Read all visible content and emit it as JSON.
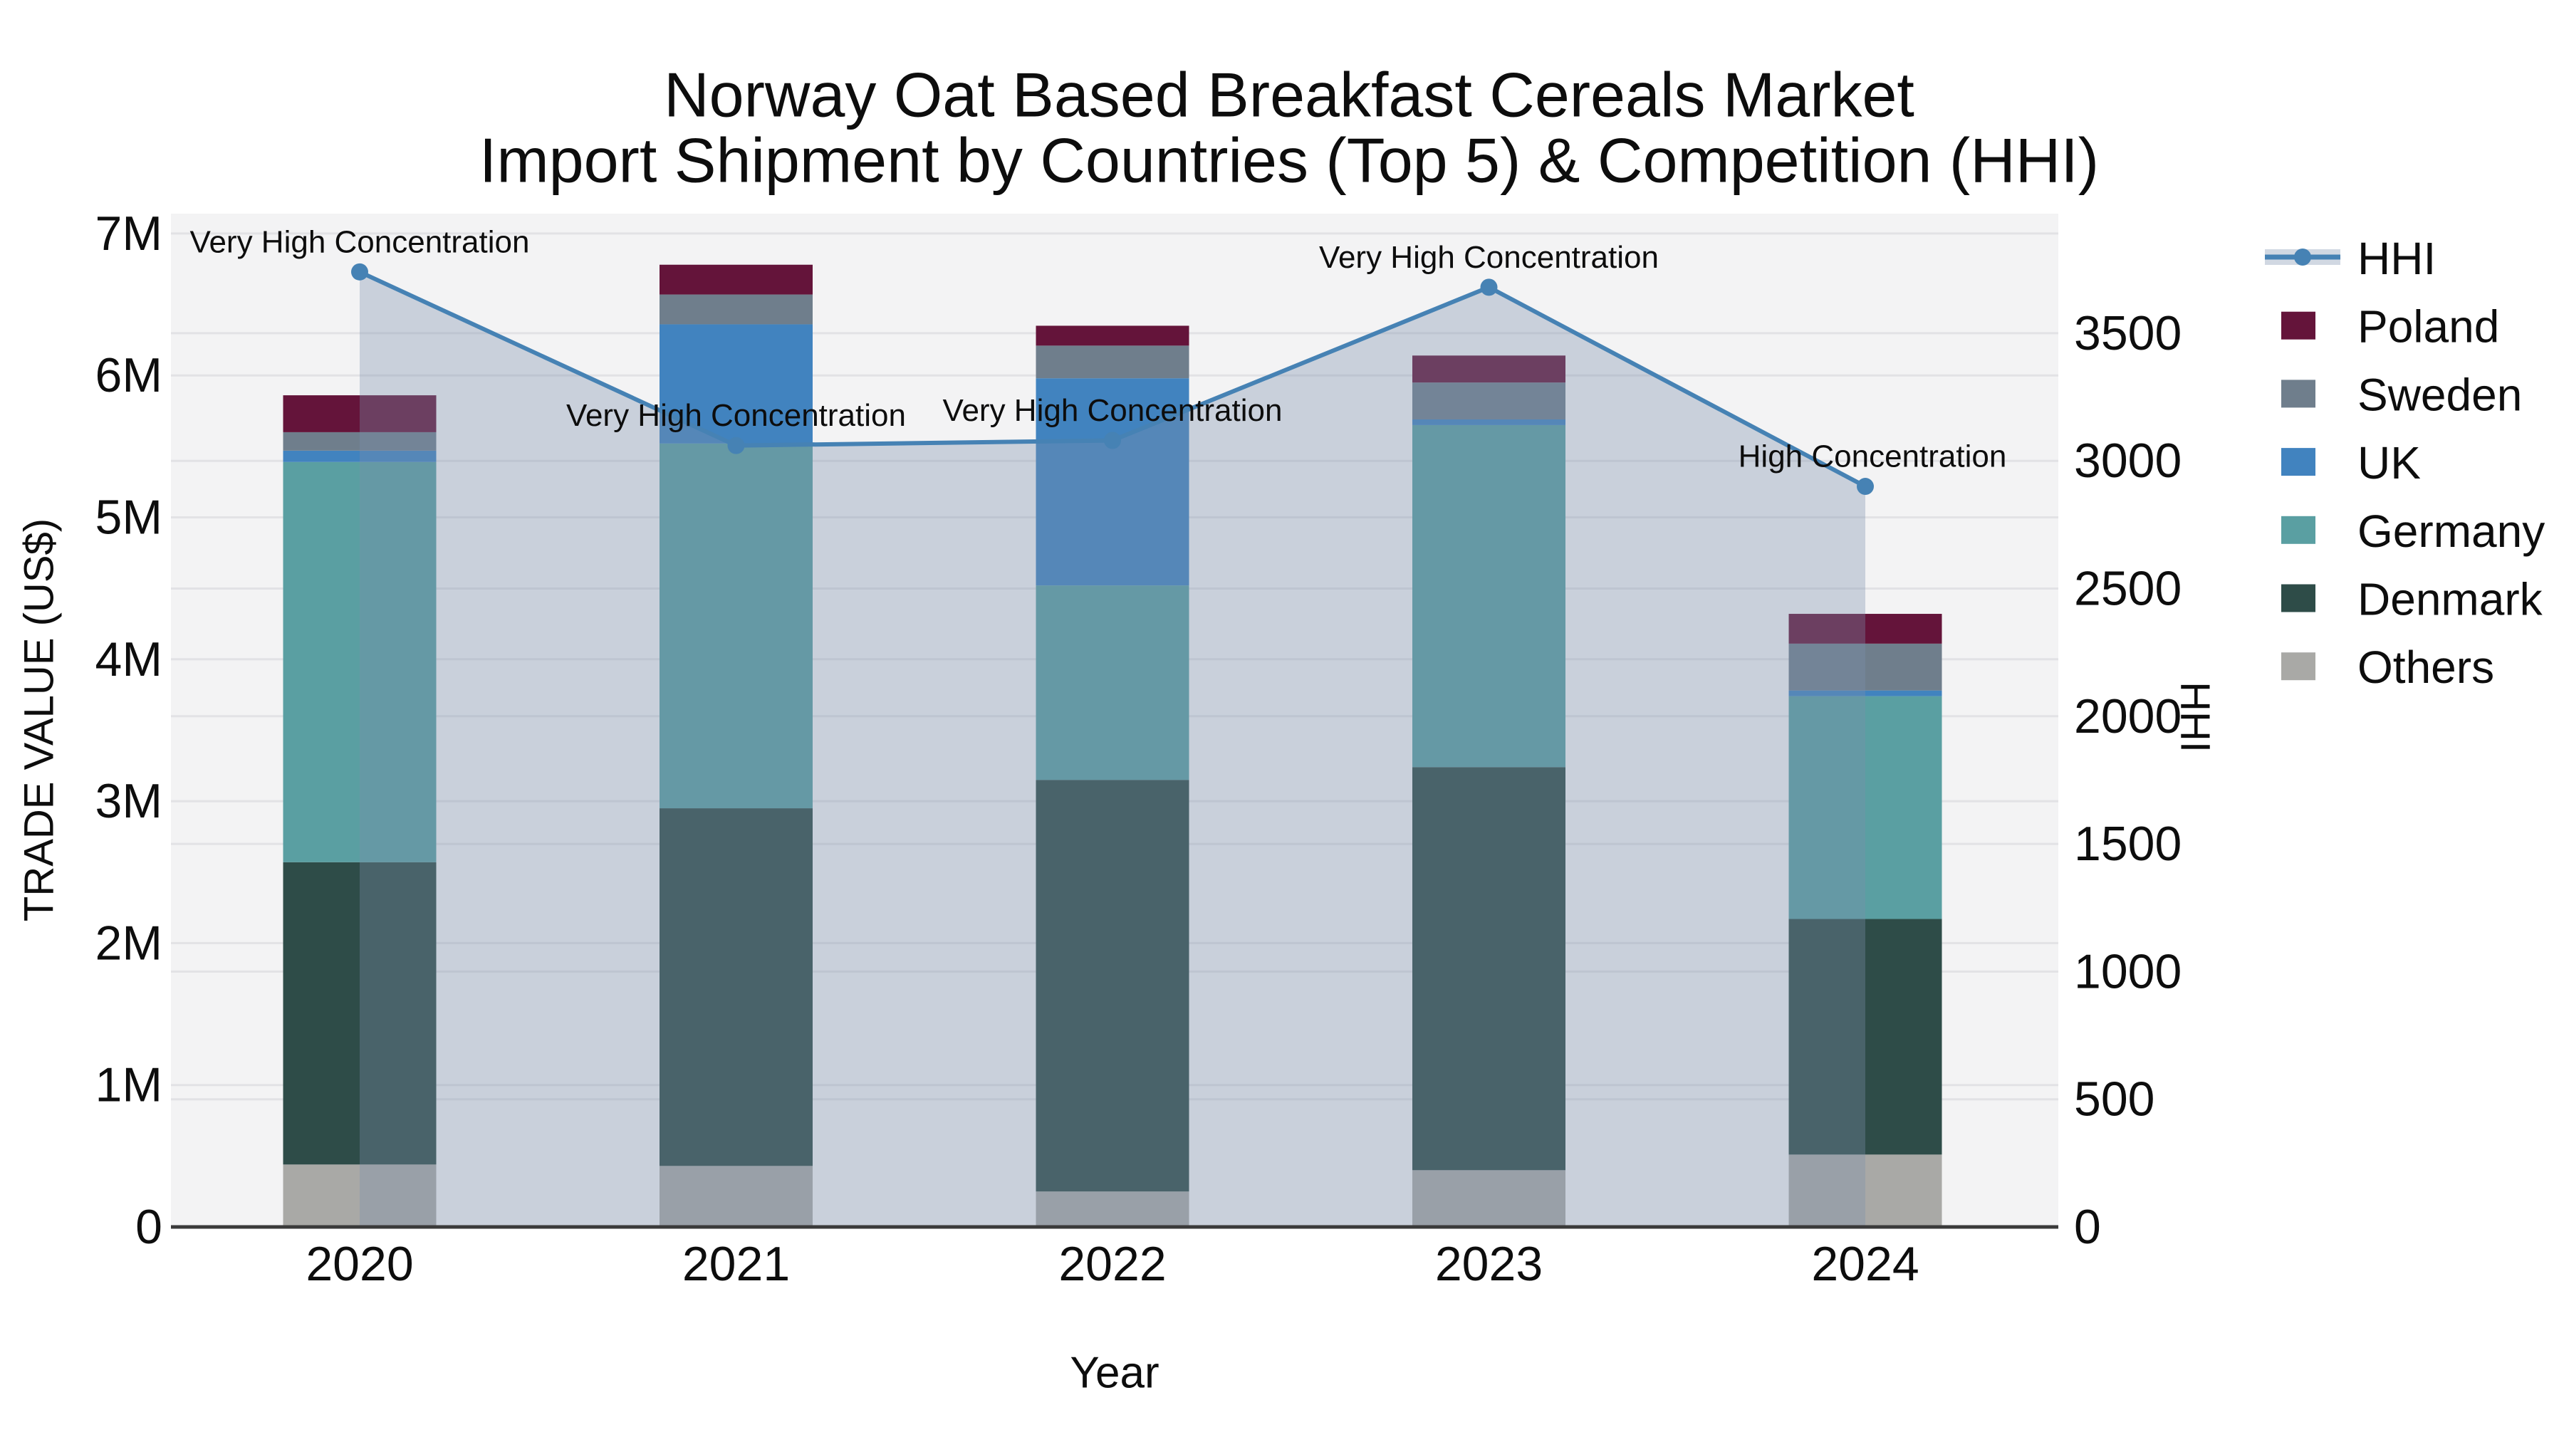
{
  "chart_data": {
    "type": "bar",
    "subtype": "stacked-bars-with-line-and-area",
    "title_line1": "Norway Oat Based Breakfast Cereals Market",
    "title_line2": "Import Shipment by Countries (Top 5) & Competition (HHI)",
    "xlabel": "Year",
    "ylabel_left": "TRADE VALUE (US$)",
    "ylabel_right": "HHI",
    "categories": [
      "2020",
      "2021",
      "2022",
      "2023",
      "2024"
    ],
    "series": [
      {
        "name": "Others",
        "color": "#a9a9a6",
        "values_million_usd": [
          0.44,
          0.43,
          0.25,
          0.4,
          0.51
        ]
      },
      {
        "name": "Denmark",
        "color": "#2e4c48",
        "values_million_usd": [
          2.13,
          2.52,
          2.9,
          2.84,
          1.66
        ]
      },
      {
        "name": "Germany",
        "color": "#5a9fa2",
        "values_million_usd": [
          2.82,
          2.57,
          1.37,
          2.41,
          1.57
        ]
      },
      {
        "name": "UK",
        "color": "#4183bf",
        "values_million_usd": [
          0.08,
          0.84,
          1.46,
          0.04,
          0.04
        ]
      },
      {
        "name": "Sweden",
        "color": "#6f7e8c",
        "values_million_usd": [
          0.13,
          0.21,
          0.23,
          0.26,
          0.33
        ]
      },
      {
        "name": "Poland",
        "color": "#64143a",
        "values_million_usd": [
          0.26,
          0.21,
          0.14,
          0.19,
          0.21
        ]
      }
    ],
    "bar_totals_million_usd": [
      5.86,
      6.78,
      6.35,
      6.14,
      4.32
    ],
    "hhi_line": {
      "name": "HHI",
      "color": "#4682b4",
      "area_fill": "rgba(123,144,173,0.35)",
      "values": [
        3740,
        3060,
        3080,
        3680,
        2900
      ]
    },
    "annotations": [
      {
        "year": "2020",
        "text": "Very High Concentration"
      },
      {
        "year": "2021",
        "text": "Very High Concentration"
      },
      {
        "year": "2022",
        "text": "Very High Concentration"
      },
      {
        "year": "2023",
        "text": "Very High Concentration"
      },
      {
        "year": "2024",
        "text": "High Concentration"
      }
    ],
    "left_axis": {
      "tick_labels": [
        "0",
        "1M",
        "2M",
        "3M",
        "4M",
        "5M",
        "6M",
        "7M"
      ],
      "tick_values_million": [
        0,
        1,
        2,
        3,
        4,
        5,
        6,
        7
      ],
      "ylim_million": [
        0,
        7.14
      ]
    },
    "right_axis": {
      "tick_labels": [
        "0",
        "500",
        "1000",
        "1500",
        "2000",
        "2500",
        "3000",
        "3500"
      ],
      "tick_values": [
        0,
        500,
        1000,
        1500,
        2000,
        2500,
        3000,
        3500
      ],
      "ylim": [
        0,
        3975
      ]
    },
    "legend": {
      "entries": [
        {
          "label": "HHI",
          "type": "line-on-band"
        },
        {
          "label": "Poland",
          "type": "swatch",
          "color": "#64143a"
        },
        {
          "label": "Sweden",
          "type": "swatch",
          "color": "#6f7e8c"
        },
        {
          "label": "UK",
          "type": "swatch",
          "color": "#4183bf"
        },
        {
          "label": "Germany",
          "type": "swatch",
          "color": "#5a9fa2"
        },
        {
          "label": "Denmark",
          "type": "swatch",
          "color": "#2e4c48"
        },
        {
          "label": "Others",
          "type": "swatch",
          "color": "#a9a9a6"
        }
      ],
      "position": "right"
    },
    "style": {
      "plot_background": "#f3f3f4",
      "gridline_color": "#e2e2e5",
      "axis_line_color": "#3a3a3a",
      "grid_on": true
    }
  }
}
